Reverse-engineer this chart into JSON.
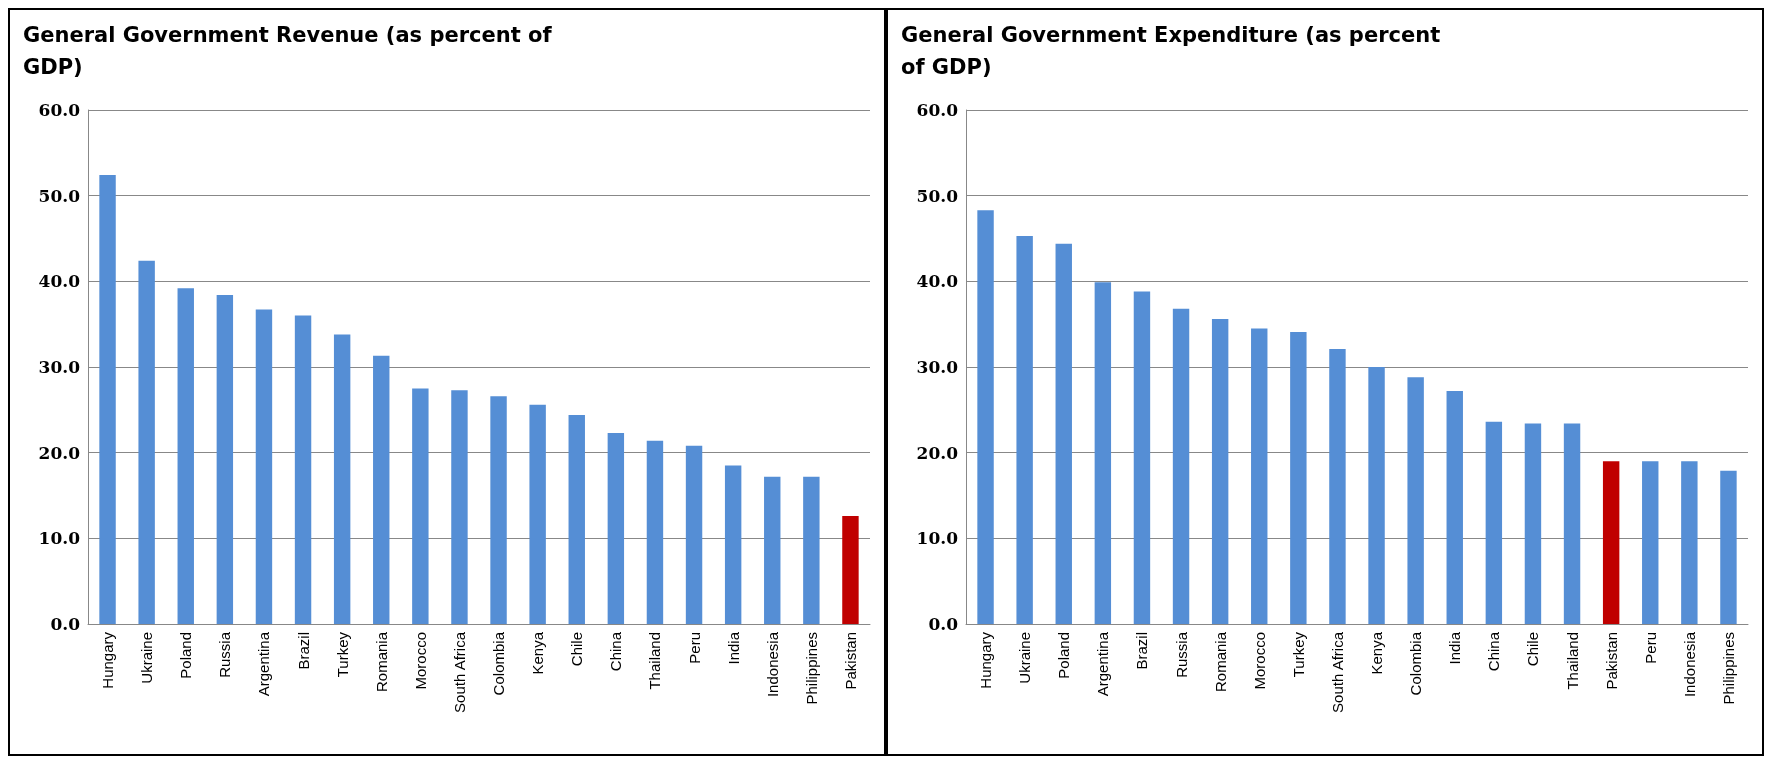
{
  "chart_data": [
    {
      "type": "bar",
      "title": "General Government Revenue (as percent of GDP)",
      "categories": [
        "Hungary",
        "Ukraine",
        "Poland",
        "Russia",
        "Argentina",
        "Brazil",
        "Turkey",
        "Romania",
        "Morocco",
        "South Africa",
        "Colombia",
        "Kenya",
        "Chile",
        "China",
        "Thailand",
        "Peru",
        "India",
        "Indonesia",
        "Philippines",
        "Pakistan"
      ],
      "values": [
        52.4,
        42.4,
        39.2,
        38.4,
        36.7,
        36.0,
        33.8,
        31.3,
        27.5,
        27.3,
        26.6,
        25.6,
        24.4,
        22.3,
        21.4,
        20.8,
        18.5,
        17.2,
        17.2,
        12.6
      ],
      "colors": [
        "#558ed5",
        "#558ed5",
        "#558ed5",
        "#558ed5",
        "#558ed5",
        "#558ed5",
        "#558ed5",
        "#558ed5",
        "#558ed5",
        "#558ed5",
        "#558ed5",
        "#558ed5",
        "#558ed5",
        "#558ed5",
        "#558ed5",
        "#558ed5",
        "#558ed5",
        "#558ed5",
        "#558ed5",
        "#c00000"
      ],
      "ylim": [
        0,
        60
      ],
      "yticks": [
        {
          "value": 0,
          "label": "0.0"
        },
        {
          "value": 10,
          "label": "10.0"
        },
        {
          "value": 20,
          "label": "20.0"
        },
        {
          "value": 30,
          "label": "30.0"
        },
        {
          "value": 40,
          "label": "40.0"
        },
        {
          "value": 50,
          "label": "50.0"
        },
        {
          "value": 60,
          "label": "60.0"
        }
      ],
      "grid": "y"
    },
    {
      "type": "bar",
      "title": "General Government Expenditure (as percent of GDP)",
      "categories": [
        "Hungary",
        "Ukraine",
        "Poland",
        "Argentina",
        "Brazil",
        "Russia",
        "Romania",
        "Morocco",
        "Turkey",
        "South Africa",
        "Kenya",
        "Colombia",
        "India",
        "China",
        "Chile",
        "Thailand",
        "Pakistan",
        "Peru",
        "Indonesia",
        "Philippines"
      ],
      "values": [
        48.3,
        45.3,
        44.4,
        39.9,
        38.8,
        36.8,
        35.6,
        34.5,
        34.1,
        32.1,
        30.0,
        28.8,
        27.2,
        23.6,
        23.4,
        23.4,
        19.0,
        19.0,
        19.0,
        17.9
      ],
      "colors": [
        "#558ed5",
        "#558ed5",
        "#558ed5",
        "#558ed5",
        "#558ed5",
        "#558ed5",
        "#558ed5",
        "#558ed5",
        "#558ed5",
        "#558ed5",
        "#558ed5",
        "#558ed5",
        "#558ed5",
        "#558ed5",
        "#558ed5",
        "#558ed5",
        "#c00000",
        "#558ed5",
        "#558ed5",
        "#558ed5"
      ],
      "ylim": [
        0,
        60
      ],
      "yticks": [
        {
          "value": 0,
          "label": "0.0"
        },
        {
          "value": 10,
          "label": "10.0"
        },
        {
          "value": 20,
          "label": "20.0"
        },
        {
          "value": 30,
          "label": "30.0"
        },
        {
          "value": 40,
          "label": "40.0"
        },
        {
          "value": 50,
          "label": "50.0"
        },
        {
          "value": 60,
          "label": "60.0"
        }
      ],
      "grid": "y"
    }
  ]
}
